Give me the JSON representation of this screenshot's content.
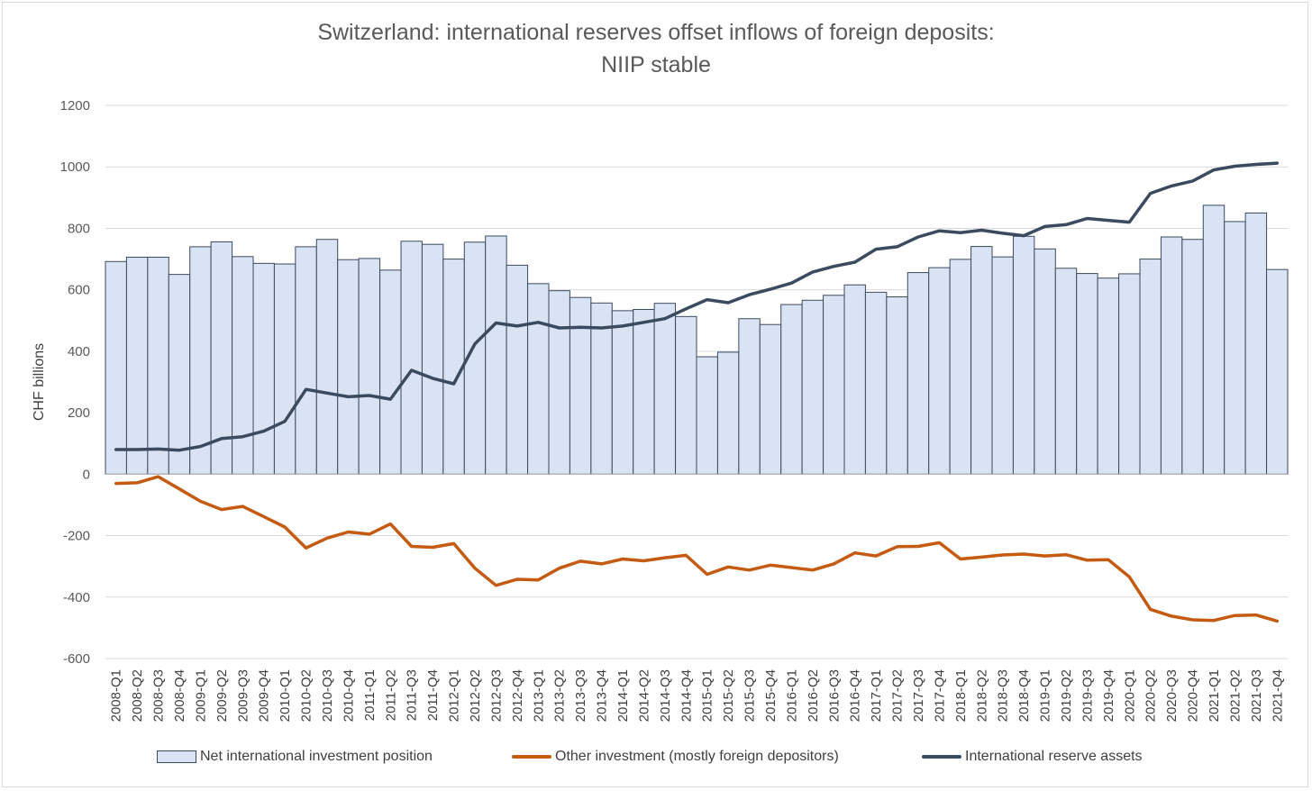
{
  "chart_data": {
    "type": "bar",
    "title": "Switzerland: international reserves offset inflows of foreign deposits:",
    "subtitle": "NIIP stable",
    "xlabel": "",
    "ylabel": "CHF billions",
    "ylim": [
      -600,
      1200
    ],
    "yticks": [
      -600,
      -400,
      -200,
      0,
      200,
      400,
      600,
      800,
      1000,
      1200
    ],
    "grid": true,
    "legend_position": "bottom",
    "categories": [
      "2008-Q1",
      "2008-Q2",
      "2008-Q3",
      "2008-Q4",
      "2009-Q1",
      "2009-Q2",
      "2009-Q3",
      "2009-Q4",
      "2010-Q1",
      "2010-Q2",
      "2010-Q3",
      "2010-Q4",
      "2011-Q1",
      "2011-Q2",
      "2011-Q3",
      "2011-Q4",
      "2012-Q1",
      "2012-Q2",
      "2012-Q3",
      "2012-Q4",
      "2013-Q1",
      "2013-Q2",
      "2013-Q3",
      "2013-Q4",
      "2014-Q1",
      "2014-Q2",
      "2014-Q3",
      "2014-Q4",
      "2015-Q1",
      "2015-Q2",
      "2015-Q3",
      "2015-Q4",
      "2016-Q1",
      "2016-Q2",
      "2016-Q3",
      "2016-Q4",
      "2017-Q1",
      "2017-Q2",
      "2017-Q3",
      "2017-Q4",
      "2018-Q1",
      "2018-Q2",
      "2018-Q3",
      "2018-Q4",
      "2019-Q1",
      "2019-Q2",
      "2019-Q3",
      "2019-Q4",
      "2020-Q1",
      "2020-Q2",
      "2020-Q3",
      "2020-Q4",
      "2021-Q1",
      "2021-Q2",
      "2021-Q3",
      "2021-Q4"
    ],
    "series": [
      {
        "name": "Net international investment position",
        "kind": "bar",
        "color": "#dae3f3",
        "stroke": "#3b4a5e",
        "values": [
          692,
          706,
          706,
          650,
          740,
          756,
          708,
          686,
          684,
          740,
          764,
          698,
          702,
          664,
          758,
          748,
          700,
          755,
          775,
          680,
          620,
          597,
          575,
          557,
          532,
          536,
          556,
          513,
          382,
          397,
          506,
          487,
          552,
          566,
          582,
          616,
          592,
          577,
          656,
          672,
          699,
          741,
          707,
          774,
          733,
          670,
          653,
          638,
          652,
          700,
          772,
          764,
          875,
          822,
          850,
          666
        ]
      },
      {
        "name": "Other investment (mostly foreign depositors)",
        "kind": "line",
        "color": "#c55a11",
        "values": [
          -30,
          -28,
          -8,
          -48,
          -88,
          -115,
          -105,
          -138,
          -172,
          -240,
          -208,
          -188,
          -195,
          -162,
          -235,
          -238,
          -226,
          -306,
          -362,
          -342,
          -344,
          -306,
          -283,
          -292,
          -276,
          -282,
          -272,
          -264,
          -326,
          -302,
          -312,
          -296,
          -304,
          -312,
          -292,
          -256,
          -266,
          -236,
          -235,
          -223,
          -276,
          -270,
          -263,
          -260,
          -266,
          -262,
          -280,
          -278,
          -334,
          -440,
          -462,
          -474,
          -476,
          -460,
          -458,
          -478
        ]
      },
      {
        "name": "International reserve assets",
        "kind": "line",
        "color": "#3b4a5e",
        "values": [
          80,
          80,
          82,
          78,
          90,
          116,
          122,
          140,
          172,
          276,
          264,
          252,
          256,
          244,
          338,
          312,
          294,
          424,
          492,
          482,
          494,
          476,
          478,
          476,
          482,
          494,
          506,
          538,
          568,
          558,
          584,
          602,
          622,
          658,
          676,
          690,
          732,
          740,
          772,
          792,
          786,
          794,
          784,
          776,
          806,
          812,
          832,
          826,
          820,
          914,
          938,
          954,
          990,
          1002,
          1008,
          1012
        ]
      }
    ]
  }
}
